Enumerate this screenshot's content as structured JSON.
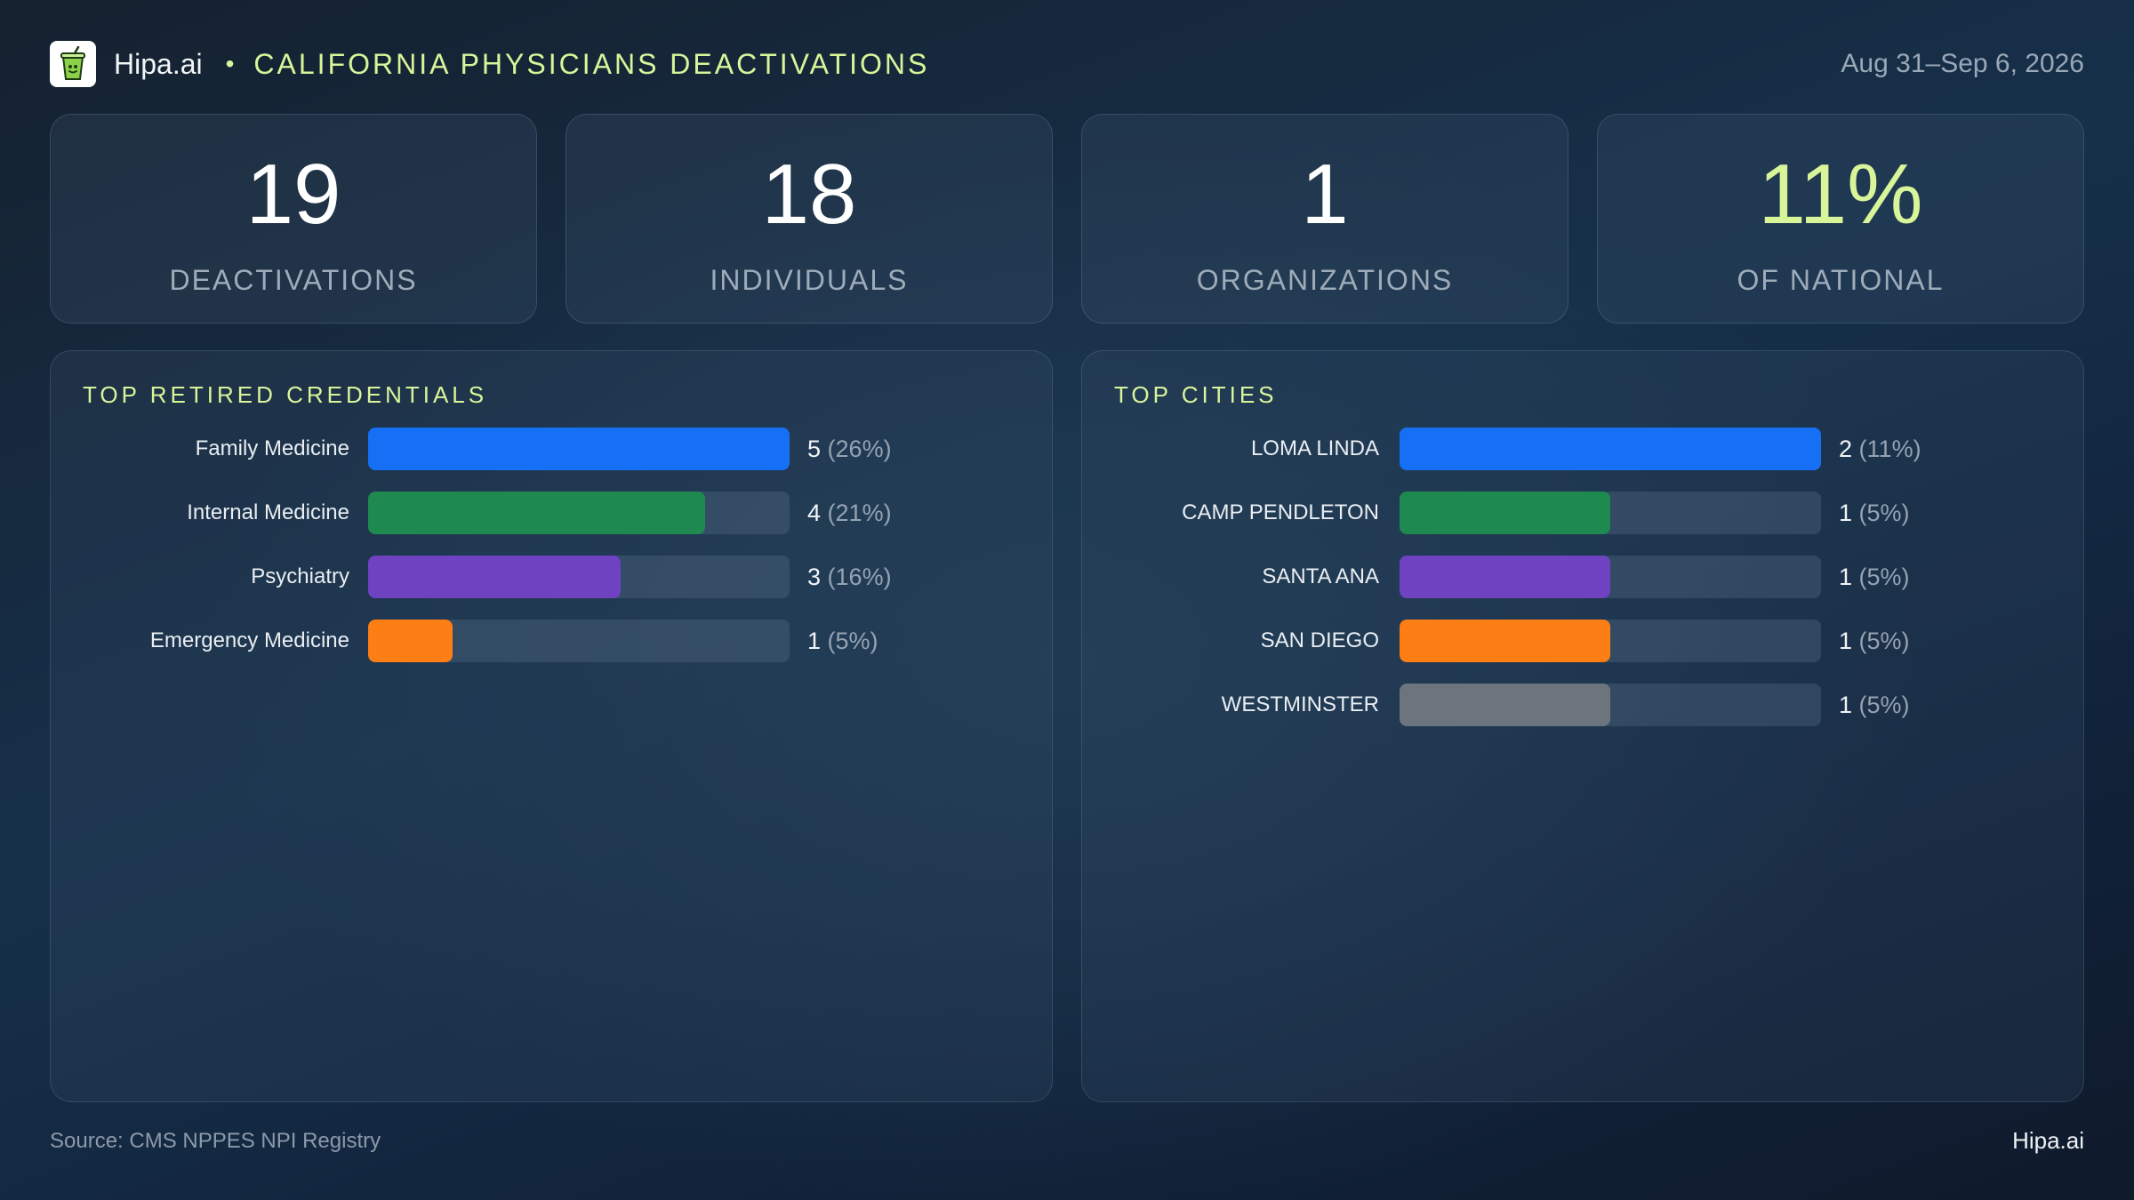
{
  "header": {
    "brand": "Hipa.ai",
    "separator": "•",
    "title": "CALIFORNIA PHYSICIANS DEACTIVATIONS",
    "date_range": "Aug 31–Sep 6, 2026",
    "logo_icon": "drink-cup-icon"
  },
  "kpis": [
    {
      "value": "19",
      "label": "DEACTIVATIONS"
    },
    {
      "value": "18",
      "label": "INDIVIDUALS"
    },
    {
      "value": "1",
      "label": "ORGANIZATIONS"
    },
    {
      "value": "11%",
      "label": "OF NATIONAL"
    }
  ],
  "colors": {
    "accent": "#d9f59a",
    "blue": "#1670f5",
    "green": "#1e8a4f",
    "purple": "#6f42c1",
    "orange": "#fd7e14",
    "gray": "#6c757d"
  },
  "chart_data": [
    {
      "type": "bar",
      "orientation": "horizontal",
      "title": "TOP RETIRED CREDENTIALS",
      "categories": [
        "Family Medicine",
        "Internal Medicine",
        "Psychiatry",
        "Emergency Medicine"
      ],
      "values": [
        5,
        4,
        3,
        1
      ],
      "percent_labels": [
        "(26%)",
        "(21%)",
        "(16%)",
        "(5%)"
      ],
      "bar_colors": [
        "#1670f5",
        "#1e8a4f",
        "#6f42c1",
        "#fd7e14"
      ],
      "xlim": [
        0,
        5
      ]
    },
    {
      "type": "bar",
      "orientation": "horizontal",
      "title": "TOP CITIES",
      "categories": [
        "LOMA LINDA",
        "CAMP PENDLETON",
        "SANTA ANA",
        "SAN DIEGO",
        "WESTMINSTER"
      ],
      "values": [
        2,
        1,
        1,
        1,
        1
      ],
      "percent_labels": [
        "(11%)",
        "(5%)",
        "(5%)",
        "(5%)",
        "(5%)"
      ],
      "bar_colors": [
        "#1670f5",
        "#1e8a4f",
        "#6f42c1",
        "#fd7e14",
        "#6c757d"
      ],
      "xlim": [
        0,
        2
      ]
    }
  ],
  "footer": {
    "source": "Source: CMS NPPES NPI Registry",
    "brand": "Hipa.ai"
  }
}
